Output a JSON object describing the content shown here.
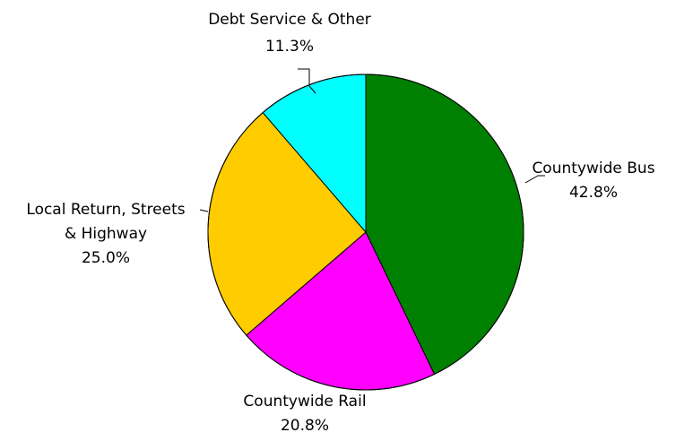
{
  "chart_data": {
    "type": "pie",
    "title": "",
    "start_angle_deg": 0,
    "direction": "clockwise",
    "slices": [
      {
        "label": "Countywide Bus",
        "label_lines": [
          "Countywide Bus"
        ],
        "value": 42.8,
        "value_text": "42.8%",
        "color": "#008000"
      },
      {
        "label": "Countywide Rail",
        "label_lines": [
          "Countywide Rail"
        ],
        "value": 20.8,
        "value_text": "20.8%",
        "color": "#ff00ff"
      },
      {
        "label": "Local Return, Streets & Highway",
        "label_lines": [
          "Local Return, Streets",
          "& Highway"
        ],
        "value": 25.0,
        "value_text": "25.0%",
        "color": "#ffcc00"
      },
      {
        "label": "Debt Service & Other",
        "label_lines": [
          "Debt Service & Other"
        ],
        "value": 11.3,
        "value_text": "11.3%",
        "color": "#00ffff"
      }
    ],
    "legend": "none",
    "outline_color": "#000000"
  }
}
